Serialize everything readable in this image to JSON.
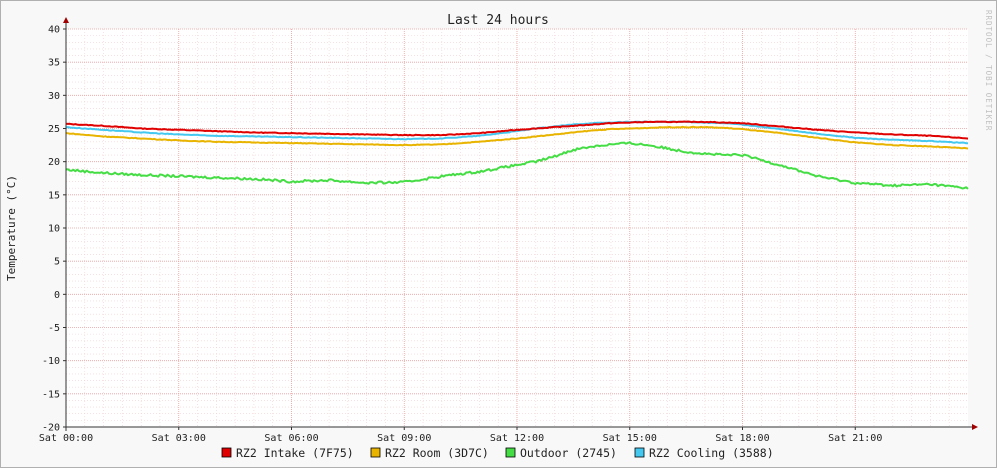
{
  "chart_data": {
    "type": "line",
    "title": "Last 24 hours",
    "ylabel": "Temperature (°C)",
    "xlabel": "",
    "watermark": "RRDTOOL / TOBI OETIKER",
    "ylim": [
      -20,
      40
    ],
    "yticks": [
      40,
      35,
      30,
      25,
      20,
      15,
      10,
      5,
      0,
      -5,
      -10,
      -15,
      -20
    ],
    "xlim": [
      0,
      24
    ],
    "xticks": [
      {
        "x": 0,
        "label": "Sat 00:00"
      },
      {
        "x": 3,
        "label": "Sat 03:00"
      },
      {
        "x": 6,
        "label": "Sat 06:00"
      },
      {
        "x": 9,
        "label": "Sat 09:00"
      },
      {
        "x": 12,
        "label": "Sat 12:00"
      },
      {
        "x": 15,
        "label": "Sat 15:00"
      },
      {
        "x": 18,
        "label": "Sat 18:00"
      },
      {
        "x": 21,
        "label": "Sat 21:00"
      }
    ],
    "grid": true,
    "legend_position": "bottom",
    "x": [
      0,
      1,
      2,
      3,
      4,
      5,
      6,
      7,
      8,
      9,
      10,
      11,
      12,
      12.5,
      13,
      13.5,
      14,
      14.5,
      15,
      15.5,
      16,
      16.5,
      17,
      17.5,
      18,
      19,
      20,
      21,
      22,
      23,
      24
    ],
    "series": [
      {
        "name": "RZ2 Intake (7F75)",
        "color": "#e00000",
        "values": [
          25.7,
          25.4,
          25.0,
          24.8,
          24.6,
          24.4,
          24.3,
          24.2,
          24.1,
          24.0,
          24.0,
          24.3,
          24.8,
          25.0,
          25.2,
          25.4,
          25.6,
          25.8,
          25.9,
          26.0,
          26.0,
          26.0,
          26.0,
          25.9,
          25.8,
          25.3,
          24.8,
          24.4,
          24.1,
          23.9,
          23.5
        ]
      },
      {
        "name": "RZ2 Room (3D7C)",
        "color": "#e8b400",
        "values": [
          24.3,
          23.8,
          23.5,
          23.2,
          23.0,
          22.9,
          22.8,
          22.7,
          22.6,
          22.5,
          22.6,
          23.0,
          23.5,
          23.8,
          24.1,
          24.4,
          24.7,
          24.9,
          25.0,
          25.1,
          25.2,
          25.2,
          25.2,
          25.1,
          24.9,
          24.3,
          23.6,
          22.9,
          22.5,
          22.3,
          22.0
        ]
      },
      {
        "name": "Outdoor (2745)",
        "color": "#44dd44",
        "values": [
          18.8,
          18.3,
          18.0,
          17.8,
          17.6,
          17.4,
          17.0,
          17.2,
          16.8,
          16.9,
          17.8,
          18.5,
          19.5,
          20.0,
          20.8,
          21.8,
          22.3,
          22.6,
          22.8,
          22.5,
          22.0,
          21.5,
          21.2,
          21.0,
          21.0,
          19.5,
          17.8,
          16.8,
          16.4,
          16.6,
          16.0
        ]
      },
      {
        "name": "RZ2 Cooling (3588)",
        "color": "#44c8f0",
        "values": [
          25.2,
          24.8,
          24.4,
          24.1,
          23.9,
          23.8,
          23.7,
          23.6,
          23.5,
          23.4,
          23.5,
          23.9,
          24.6,
          25.0,
          25.3,
          25.6,
          25.8,
          25.9,
          26.0,
          26.0,
          26.0,
          26.0,
          25.9,
          25.8,
          25.6,
          24.9,
          24.2,
          23.6,
          23.3,
          23.1,
          22.8
        ]
      }
    ]
  }
}
